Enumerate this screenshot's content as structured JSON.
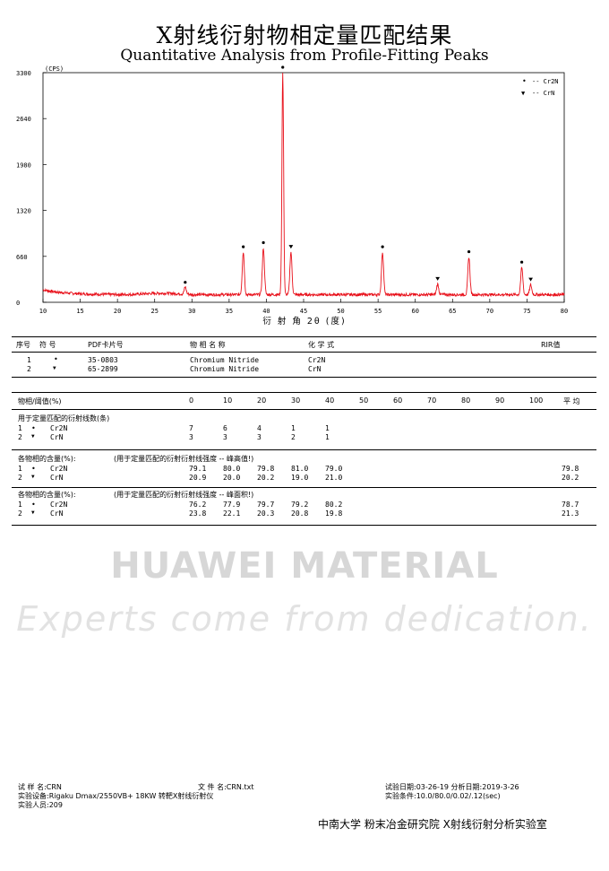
{
  "title_cn": "X射线衍射物相定量匹配结果",
  "title_en": "Quantitative Analysis from Profile-Fitting Peaks",
  "chart_data": {
    "type": "line",
    "unit_label": "(CPS)",
    "xlabel": "衍 射 角 2θ (度)",
    "xlim": [
      10,
      80
    ],
    "ylim": [
      0,
      3300
    ],
    "x_ticks": [
      10,
      15,
      20,
      25,
      30,
      35,
      40,
      45,
      50,
      55,
      60,
      65,
      70,
      75,
      80
    ],
    "y_ticks": [
      0,
      660,
      1320,
      1980,
      2640,
      3300
    ],
    "color": "#e8101a",
    "legend_position": "top-right",
    "legend": [
      {
        "symbol": "•",
        "label": "-- Cr2N"
      },
      {
        "symbol": "▼",
        "label": "-- CrN"
      }
    ],
    "baseline": 110,
    "peaks": [
      {
        "x": 29.1,
        "y": 210,
        "marker": "circle"
      },
      {
        "x": 36.9,
        "y": 720,
        "marker": "circle"
      },
      {
        "x": 39.6,
        "y": 780,
        "marker": "circle"
      },
      {
        "x": 42.2,
        "y": 3300,
        "marker": "circle"
      },
      {
        "x": 43.3,
        "y": 720,
        "marker": "triangle"
      },
      {
        "x": 55.6,
        "y": 720,
        "marker": "circle"
      },
      {
        "x": 63.0,
        "y": 260,
        "marker": "triangle"
      },
      {
        "x": 67.2,
        "y": 650,
        "marker": "circle"
      },
      {
        "x": 74.3,
        "y": 500,
        "marker": "circle"
      },
      {
        "x": 75.5,
        "y": 250,
        "marker": "triangle"
      }
    ]
  },
  "phase_table": {
    "headers": [
      "序号",
      "符 号",
      "PDF卡片号",
      "物 相 名 称",
      "化 学 式",
      "RIR值"
    ],
    "rows": [
      {
        "no": "1",
        "sym": "•",
        "pdf": "35-0803",
        "name": "Chromium Nitride",
        "formula": "Cr2N"
      },
      {
        "no": "2",
        "sym": "▼",
        "pdf": "65-2899",
        "name": "Chromium Nitride",
        "formula": "CrN"
      }
    ]
  },
  "quant": {
    "header_label": "物相/阈值(%)",
    "thresholds": [
      "0",
      "10",
      "20",
      "30",
      "40",
      "50",
      "60",
      "70",
      "80",
      "90",
      "100"
    ],
    "avg_label": "平 均",
    "section1": {
      "title": "用于定量匹配的衍射线数(条)",
      "rows": [
        {
          "no": "1",
          "sym": "•",
          "name": "Cr2N",
          "vals": [
            "7",
            "6",
            "4",
            "1",
            "1"
          ],
          "avg": ""
        },
        {
          "no": "2",
          "sym": "▼",
          "name": "CrN",
          "vals": [
            "3",
            "3",
            "3",
            "2",
            "1"
          ],
          "avg": ""
        }
      ]
    },
    "section2": {
      "title": "各物相的含量(%):",
      "subtitle": "(用于定量匹配的衍射衍射线强度 -- 峰高值!)",
      "rows": [
        {
          "no": "1",
          "sym": "•",
          "name": "Cr2N",
          "vals": [
            "79.1",
            "80.0",
            "79.8",
            "81.0",
            "79.0"
          ],
          "avg": "79.8"
        },
        {
          "no": "2",
          "sym": "▼",
          "name": "CrN",
          "vals": [
            "20.9",
            "20.0",
            "20.2",
            "19.0",
            "21.0"
          ],
          "avg": "20.2"
        }
      ]
    },
    "section3": {
      "title": "各物相的含量(%):",
      "subtitle": "(用于定量匹配的衍射衍射线强度 -- 峰面积!)",
      "rows": [
        {
          "no": "1",
          "sym": "•",
          "name": "Cr2N",
          "vals": [
            "76.2",
            "77.9",
            "79.7",
            "79.2",
            "80.2"
          ],
          "avg": "78.7"
        },
        {
          "no": "2",
          "sym": "▼",
          "name": "CrN",
          "vals": [
            "23.8",
            "22.1",
            "20.3",
            "20.8",
            "19.8"
          ],
          "avg": "21.3"
        }
      ]
    }
  },
  "watermark": {
    "line1": "HUAWEI MATERIAL",
    "line2": "Experts come from dedication."
  },
  "footer": {
    "sample": "试 样 名:CRN",
    "file": "文 件 名:CRN.txt",
    "test_date": "试验日期:03-26-19  分析日期:2019-3-26",
    "equipment": "实验设备:Rigaku Dmax/2550VB+ 18KW 转靶X射线衍射仪",
    "conditions": "实验条件:10.0/80.0/0.02/.12(sec)",
    "operator": "实验人员:209",
    "institution": "中南大学 粉末冶金研究院 X射线衍射分析实验室"
  }
}
